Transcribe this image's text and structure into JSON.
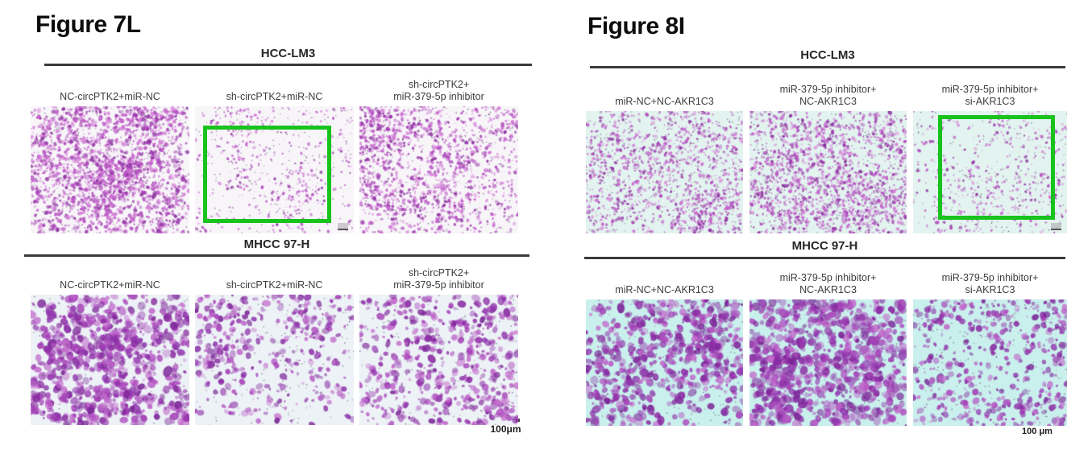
{
  "colors": {
    "highlight_green": "#17c31c",
    "speck": "#403a58",
    "scale_bar": "#4c4c4c",
    "palette_small_dots": [
      "#cb67d0",
      "#b044bd",
      "#9733a8",
      "#d886da",
      "#bd57c7",
      "#8a2a9e"
    ],
    "palette_large_blobs": [
      "#a13bb4",
      "#8a2ba3",
      "#b04ec0",
      "#c167cb",
      "#7b2397",
      "#9035ad"
    ]
  },
  "figures": [
    {
      "name": "figure-7l",
      "title": "Figure 7L",
      "scale_bar_label": "100μm",
      "rows": [
        {
          "cell_line": "HCC-LM3",
          "bg": "#f8f5f9",
          "palette": "palette_small_dots",
          "panels": [
            {
              "label": "NC-circPTK2+miR-NC",
              "density": "high",
              "render": {
                "seed": 11,
                "count": 2200,
                "rmin": 0.8,
                "rmax": 2.6,
                "clusters": 28,
                "spread": 46,
                "specks": 260
              },
              "highlight": null,
              "corner_mark": false
            },
            {
              "label": "sh-circPTK2+miR-NC",
              "density": "low",
              "render": {
                "seed": 12,
                "count": 560,
                "rmin": 0.7,
                "rmax": 2.0,
                "clusters": 18,
                "spread": 42,
                "specks": 150
              },
              "highlight": {
                "x": 0.05,
                "y": 0.15,
                "w": 0.81,
                "h": 0.77
              },
              "corner_mark": true
            },
            {
              "label": "sh-circPTK2+\nmiR-379-5p inhibitor",
              "density": "medium-high",
              "render": {
                "seed": 13,
                "count": 1500,
                "rmin": 0.8,
                "rmax": 2.4,
                "clusters": 26,
                "spread": 44,
                "specks": 220
              },
              "highlight": null,
              "corner_mark": false
            }
          ]
        },
        {
          "cell_line": "MHCC 97-H",
          "bg": "#edf2f6",
          "palette": "palette_large_blobs",
          "panels": [
            {
              "label": "NC-circPTK2+miR-NC",
              "density": "high",
              "render": {
                "seed": 21,
                "count": 820,
                "rmin": 1.5,
                "rmax": 5.5,
                "clusters": 22,
                "spread": 58,
                "specks": 170
              },
              "highlight": null,
              "corner_mark": false
            },
            {
              "label": "sh-circPTK2+miR-NC",
              "density": "low-medium",
              "render": {
                "seed": 22,
                "count": 430,
                "rmin": 1.2,
                "rmax": 4.2,
                "clusters": 20,
                "spread": 64,
                "specks": 180
              },
              "highlight": null,
              "corner_mark": false
            },
            {
              "label": "sh-circPTK2+\nmiR-379-5p inhibitor",
              "density": "medium",
              "render": {
                "seed": 23,
                "count": 580,
                "rmin": 1.3,
                "rmax": 4.6,
                "clusters": 22,
                "spread": 60,
                "specks": 170
              },
              "highlight": null,
              "corner_mark": false
            }
          ]
        }
      ]
    },
    {
      "name": "figure-8i",
      "title": "Figure 8I",
      "scale_bar_label": "100 μm",
      "rows": [
        {
          "cell_line": "HCC-LM3",
          "bg": "#e3f3ef",
          "palette": "palette_small_dots",
          "panels": [
            {
              "label": "miR-NC+NC-AKR1C3",
              "density": "medium-high",
              "render": {
                "seed": 31,
                "count": 1350,
                "rmin": 0.8,
                "rmax": 2.2,
                "clusters": 26,
                "spread": 48,
                "specks": 240
              },
              "highlight": null,
              "corner_mark": false
            },
            {
              "label": "miR-379-5p inhibitor+\nNC-AKR1C3",
              "density": "high",
              "render": {
                "seed": 32,
                "count": 1750,
                "rmin": 0.8,
                "rmax": 2.3,
                "clusters": 28,
                "spread": 46,
                "specks": 260
              },
              "highlight": null,
              "corner_mark": false
            },
            {
              "label": "miR-379-5p inhibitor+\nsi-AKR1C3",
              "density": "low",
              "render": {
                "seed": 33,
                "count": 520,
                "rmin": 0.7,
                "rmax": 2.0,
                "clusters": 16,
                "spread": 52,
                "specks": 150
              },
              "highlight": {
                "x": 0.16,
                "y": 0.03,
                "w": 0.76,
                "h": 0.86
              },
              "corner_mark": true
            }
          ]
        },
        {
          "cell_line": "MHCC 97-H",
          "bg": "#c9f0ec",
          "palette": "palette_large_blobs",
          "panels": [
            {
              "label": "miR-NC+NC-AKR1C3",
              "density": "high",
              "render": {
                "seed": 41,
                "count": 720,
                "rmin": 1.4,
                "rmax": 5.0,
                "clusters": 22,
                "spread": 58,
                "specks": 150
              },
              "highlight": null,
              "corner_mark": false
            },
            {
              "label": "miR-379-5p inhibitor+\nNC-AKR1C3",
              "density": "very-high",
              "render": {
                "seed": 42,
                "count": 920,
                "rmin": 1.5,
                "rmax": 5.5,
                "clusters": 24,
                "spread": 52,
                "specks": 160
              },
              "highlight": null,
              "corner_mark": false
            },
            {
              "label": "miR-379-5p inhibitor+\nsi-AKR1C3",
              "density": "medium",
              "render": {
                "seed": 43,
                "count": 520,
                "rmin": 1.2,
                "rmax": 4.2,
                "clusters": 20,
                "spread": 58,
                "specks": 160
              },
              "highlight": null,
              "corner_mark": false
            }
          ]
        }
      ]
    }
  ]
}
